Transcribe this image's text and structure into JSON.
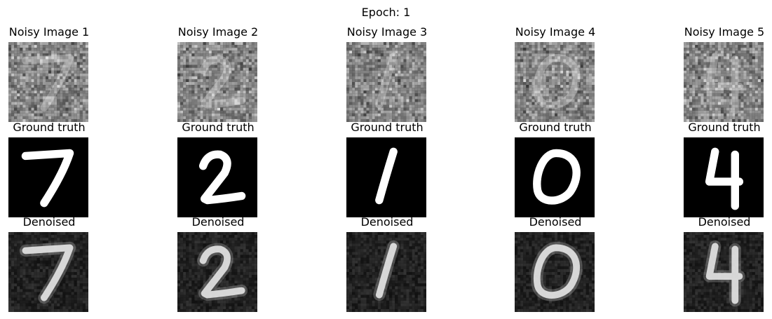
{
  "figure": {
    "title": "Epoch: 1",
    "row_labels": {
      "ground_truth": "Ground truth",
      "denoised": "Denoised"
    },
    "samples": [
      {
        "noisy_title": "Noisy Image 1",
        "digit": "7"
      },
      {
        "noisy_title": "Noisy Image 2",
        "digit": "2"
      },
      {
        "noisy_title": "Noisy Image 3",
        "digit": "1"
      },
      {
        "noisy_title": "Noisy Image 4",
        "digit": "0"
      },
      {
        "noisy_title": "Noisy Image 5",
        "digit": "4"
      }
    ]
  }
}
